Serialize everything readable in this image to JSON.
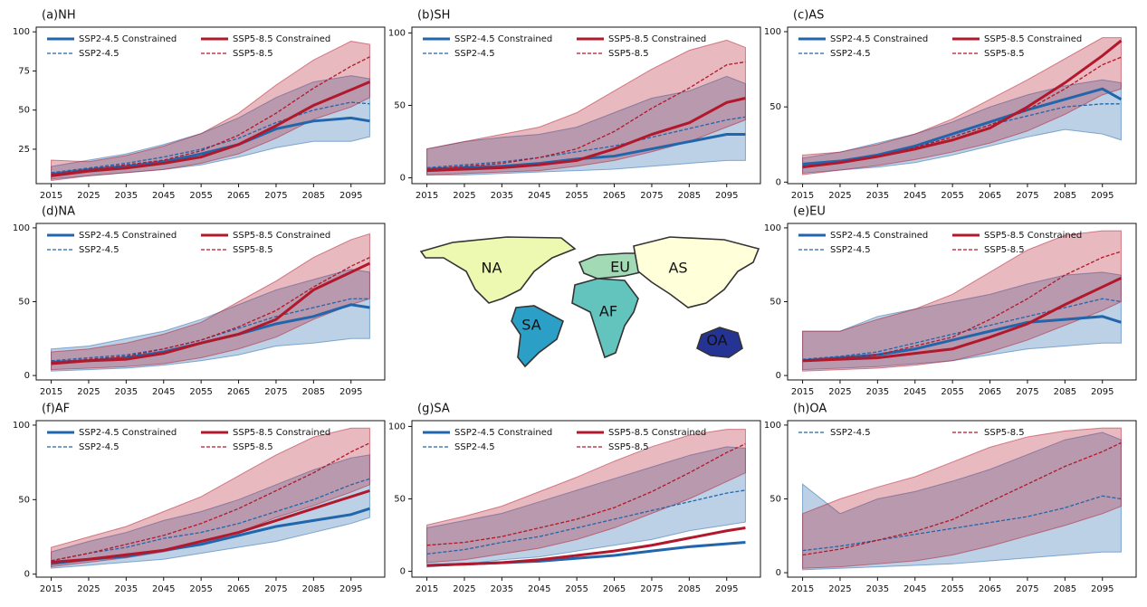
{
  "chart_data": [
    {
      "type": "line",
      "title": "(a)NH",
      "x": [
        2015,
        2025,
        2035,
        2045,
        2055,
        2065,
        2075,
        2085,
        2095,
        2100
      ],
      "xlim": [
        2011,
        2104
      ],
      "xticks": [
        2015,
        2025,
        2035,
        2045,
        2055,
        2065,
        2075,
        2085,
        2095
      ],
      "ylim": [
        3,
        103
      ],
      "yticks": [
        25,
        50,
        75,
        100
      ],
      "series": [
        {
          "name": "SSP2-4.5 Constrained",
          "color": "#2166ac",
          "dashed": false,
          "values": [
            9,
            12,
            14,
            17,
            22,
            28,
            38,
            43,
            45,
            43
          ]
        },
        {
          "name": "SSP2-4.5",
          "color": "#2166ac",
          "dashed": true,
          "values": [
            10,
            13,
            16,
            20,
            25,
            32,
            42,
            50,
            55,
            54
          ],
          "lower": [
            6,
            8,
            10,
            12,
            15,
            20,
            26,
            30,
            30,
            33
          ],
          "upper": [
            14,
            18,
            22,
            28,
            35,
            45,
            58,
            68,
            72,
            70
          ]
        },
        {
          "name": "SSP5-8.5 Constrained",
          "color": "#b2182b",
          "dashed": false,
          "values": [
            8,
            11,
            13,
            16,
            20,
            28,
            40,
            53,
            63,
            68
          ]
        },
        {
          "name": "SSP5-8.5",
          "color": "#b2182b",
          "dashed": true,
          "values": [
            9,
            12,
            15,
            18,
            24,
            34,
            48,
            64,
            78,
            84
          ],
          "lower": [
            5,
            8,
            10,
            12,
            16,
            22,
            32,
            44,
            52,
            58
          ],
          "upper": [
            18,
            17,
            21,
            27,
            35,
            48,
            66,
            82,
            94,
            92
          ]
        }
      ]
    },
    {
      "type": "line",
      "title": "(b)SH",
      "x": [
        2015,
        2025,
        2035,
        2045,
        2055,
        2065,
        2075,
        2085,
        2095,
        2100
      ],
      "xlim": [
        2011,
        2104
      ],
      "xticks": [
        2015,
        2025,
        2035,
        2045,
        2055,
        2065,
        2075,
        2085,
        2095
      ],
      "ylim": [
        -4,
        104
      ],
      "yticks": [
        0,
        50,
        100
      ],
      "series": [
        {
          "name": "SSP2-4.5 Constrained",
          "color": "#2166ac",
          "dashed": false,
          "values": [
            6,
            7,
            8,
            10,
            13,
            15,
            20,
            25,
            30,
            30
          ]
        },
        {
          "name": "SSP2-4.5",
          "color": "#2166ac",
          "dashed": true,
          "values": [
            7,
            9,
            11,
            14,
            18,
            22,
            28,
            34,
            40,
            42
          ],
          "lower": [
            2,
            2,
            3,
            4,
            5,
            6,
            8,
            10,
            12,
            12
          ],
          "upper": [
            20,
            25,
            28,
            30,
            35,
            45,
            55,
            60,
            70,
            65
          ]
        },
        {
          "name": "SSP5-8.5 Constrained",
          "color": "#b2182b",
          "dashed": false,
          "values": [
            5,
            6,
            7,
            9,
            12,
            20,
            30,
            38,
            52,
            55
          ]
        },
        {
          "name": "SSP5-8.5",
          "color": "#b2182b",
          "dashed": true,
          "values": [
            6,
            8,
            10,
            14,
            20,
            32,
            48,
            62,
            78,
            80
          ],
          "lower": [
            2,
            3,
            4,
            5,
            8,
            12,
            18,
            25,
            35,
            40
          ],
          "upper": [
            20,
            25,
            30,
            35,
            45,
            60,
            75,
            88,
            95,
            90
          ]
        }
      ]
    },
    {
      "type": "line",
      "title": "(c)AS",
      "x": [
        2015,
        2025,
        2035,
        2045,
        2055,
        2065,
        2075,
        2085,
        2095,
        2100
      ],
      "xlim": [
        2011,
        2104
      ],
      "xticks": [
        2015,
        2025,
        2035,
        2045,
        2055,
        2065,
        2075,
        2085,
        2095
      ],
      "ylim": [
        -1,
        103
      ],
      "yticks": [
        0,
        50,
        100
      ],
      "series": [
        {
          "name": "SSP2-4.5 Constrained",
          "color": "#2166ac",
          "dashed": false,
          "values": [
            12,
            14,
            18,
            24,
            32,
            40,
            48,
            55,
            62,
            55
          ]
        },
        {
          "name": "SSP2-4.5",
          "color": "#2166ac",
          "dashed": true,
          "values": [
            11,
            14,
            18,
            23,
            30,
            38,
            44,
            50,
            52,
            52
          ],
          "lower": [
            6,
            8,
            10,
            13,
            18,
            24,
            30,
            35,
            32,
            28
          ],
          "upper": [
            16,
            20,
            26,
            32,
            40,
            50,
            58,
            64,
            68,
            66
          ]
        },
        {
          "name": "SSP5-8.5 Constrained",
          "color": "#b2182b",
          "dashed": false,
          "values": [
            10,
            13,
            17,
            22,
            28,
            36,
            50,
            66,
            84,
            94
          ]
        },
        {
          "name": "SSP5-8.5",
          "color": "#b2182b",
          "dashed": true,
          "values": [
            10,
            13,
            17,
            23,
            30,
            38,
            48,
            62,
            78,
            83
          ],
          "lower": [
            5,
            8,
            11,
            15,
            20,
            26,
            34,
            45,
            58,
            62
          ],
          "upper": [
            18,
            20,
            25,
            32,
            42,
            55,
            68,
            82,
            96,
            96
          ]
        }
      ]
    },
    {
      "type": "line",
      "title": "(d)NA",
      "x": [
        2015,
        2025,
        2035,
        2045,
        2055,
        2065,
        2075,
        2085,
        2095,
        2100
      ],
      "xlim": [
        2011,
        2104
      ],
      "xticks": [
        2015,
        2025,
        2035,
        2045,
        2055,
        2065,
        2075,
        2085,
        2095
      ],
      "ylim": [
        -3,
        103
      ],
      "yticks": [
        0,
        50,
        100
      ],
      "series": [
        {
          "name": "SSP2-4.5 Constrained",
          "color": "#2166ac",
          "dashed": false,
          "values": [
            9,
            10,
            12,
            16,
            22,
            28,
            35,
            40,
            48,
            46
          ]
        },
        {
          "name": "SSP2-4.5",
          "color": "#2166ac",
          "dashed": true,
          "values": [
            10,
            12,
            14,
            18,
            24,
            32,
            40,
            46,
            52,
            52
          ],
          "lower": [
            3,
            4,
            5,
            7,
            10,
            14,
            20,
            22,
            25,
            25
          ],
          "upper": [
            18,
            20,
            25,
            30,
            38,
            48,
            58,
            65,
            72,
            70
          ]
        },
        {
          "name": "SSP5-8.5 Constrained",
          "color": "#b2182b",
          "dashed": false,
          "values": [
            8,
            10,
            11,
            15,
            22,
            28,
            38,
            58,
            70,
            76
          ]
        },
        {
          "name": "SSP5-8.5",
          "color": "#b2182b",
          "dashed": true,
          "values": [
            9,
            11,
            13,
            18,
            24,
            33,
            44,
            60,
            74,
            80
          ],
          "lower": [
            4,
            5,
            6,
            8,
            12,
            18,
            26,
            38,
            48,
            52
          ],
          "upper": [
            16,
            18,
            22,
            28,
            36,
            50,
            64,
            80,
            92,
            96
          ]
        }
      ]
    },
    {
      "type": "line",
      "title": "(e)EU",
      "x": [
        2015,
        2025,
        2035,
        2045,
        2055,
        2065,
        2075,
        2085,
        2095,
        2100
      ],
      "xlim": [
        2011,
        2104
      ],
      "xticks": [
        2015,
        2025,
        2035,
        2045,
        2055,
        2065,
        2075,
        2085,
        2095
      ],
      "ylim": [
        -3,
        103
      ],
      "yticks": [
        0,
        50,
        100
      ],
      "series": [
        {
          "name": "SSP2-4.5 Constrained",
          "color": "#2166ac",
          "dashed": false,
          "values": [
            10,
            12,
            14,
            18,
            24,
            30,
            36,
            38,
            40,
            36
          ]
        },
        {
          "name": "SSP2-4.5",
          "color": "#2166ac",
          "dashed": true,
          "values": [
            11,
            13,
            16,
            22,
            28,
            34,
            40,
            46,
            52,
            50
          ],
          "lower": [
            4,
            5,
            6,
            8,
            10,
            14,
            18,
            20,
            22,
            22
          ],
          "upper": [
            30,
            30,
            40,
            45,
            50,
            55,
            62,
            68,
            70,
            68
          ]
        },
        {
          "name": "SSP5-8.5 Constrained",
          "color": "#b2182b",
          "dashed": false,
          "values": [
            10,
            11,
            12,
            15,
            18,
            26,
            35,
            48,
            60,
            66
          ]
        },
        {
          "name": "SSP5-8.5",
          "color": "#b2182b",
          "dashed": true,
          "values": [
            10,
            12,
            14,
            20,
            26,
            38,
            52,
            68,
            80,
            84
          ],
          "lower": [
            3,
            4,
            5,
            7,
            10,
            16,
            24,
            34,
            44,
            50
          ],
          "upper": [
            30,
            30,
            38,
            45,
            55,
            70,
            85,
            95,
            98,
            98
          ]
        }
      ]
    },
    {
      "type": "line",
      "title": "(f)AF",
      "x": [
        2015,
        2025,
        2035,
        2045,
        2055,
        2065,
        2075,
        2085,
        2095,
        2100
      ],
      "xlim": [
        2011,
        2104
      ],
      "xticks": [
        2015,
        2025,
        2035,
        2045,
        2055,
        2065,
        2075,
        2085,
        2095
      ],
      "ylim": [
        -2,
        103
      ],
      "yticks": [
        0,
        50,
        100
      ],
      "series": [
        {
          "name": "SSP2-4.5 Constrained",
          "color": "#2166ac",
          "dashed": false,
          "values": [
            7,
            10,
            12,
            16,
            20,
            26,
            32,
            36,
            40,
            44
          ]
        },
        {
          "name": "SSP2-4.5",
          "color": "#2166ac",
          "dashed": true,
          "values": [
            9,
            14,
            18,
            24,
            28,
            34,
            42,
            50,
            60,
            64
          ],
          "lower": [
            4,
            6,
            8,
            10,
            14,
            18,
            22,
            28,
            34,
            38
          ],
          "upper": [
            15,
            22,
            28,
            36,
            42,
            50,
            60,
            70,
            78,
            80
          ]
        },
        {
          "name": "SSP5-8.5 Constrained",
          "color": "#b2182b",
          "dashed": false,
          "values": [
            8,
            10,
            13,
            16,
            22,
            28,
            36,
            44,
            52,
            56
          ]
        },
        {
          "name": "SSP5-8.5",
          "color": "#b2182b",
          "dashed": true,
          "values": [
            9,
            14,
            20,
            26,
            34,
            44,
            56,
            68,
            82,
            88
          ],
          "lower": [
            5,
            8,
            11,
            15,
            20,
            28,
            38,
            46,
            55,
            60
          ],
          "upper": [
            18,
            25,
            32,
            42,
            52,
            66,
            80,
            92,
            98,
            98
          ]
        }
      ]
    },
    {
      "type": "line",
      "title": "(g)SA",
      "x": [
        2015,
        2025,
        2035,
        2045,
        2055,
        2065,
        2075,
        2085,
        2095,
        2100
      ],
      "xlim": [
        2011,
        2104
      ],
      "xticks": [
        2015,
        2025,
        2035,
        2045,
        2055,
        2065,
        2075,
        2085,
        2095
      ],
      "ylim": [
        -4,
        104
      ],
      "yticks": [
        0,
        50,
        100
      ],
      "series": [
        {
          "name": "SSP2-4.5 Constrained",
          "color": "#2166ac",
          "dashed": false,
          "values": [
            4,
            5,
            6,
            7,
            9,
            11,
            14,
            17,
            19,
            20
          ]
        },
        {
          "name": "SSP2-4.5",
          "color": "#2166ac",
          "dashed": true,
          "values": [
            12,
            15,
            20,
            24,
            30,
            36,
            42,
            48,
            54,
            56
          ],
          "lower": [
            3,
            5,
            8,
            10,
            14,
            18,
            22,
            28,
            32,
            34
          ],
          "upper": [
            30,
            35,
            40,
            48,
            56,
            64,
            72,
            80,
            86,
            85
          ]
        },
        {
          "name": "SSP5-8.5 Constrained",
          "color": "#b2182b",
          "dashed": false,
          "values": [
            4,
            5,
            6,
            8,
            11,
            14,
            18,
            23,
            28,
            30
          ]
        },
        {
          "name": "SSP5-8.5",
          "color": "#b2182b",
          "dashed": true,
          "values": [
            18,
            20,
            24,
            30,
            36,
            44,
            55,
            68,
            82,
            88
          ],
          "lower": [
            6,
            8,
            12,
            16,
            22,
            30,
            40,
            50,
            62,
            68
          ],
          "upper": [
            32,
            38,
            45,
            55,
            65,
            76,
            86,
            94,
            98,
            98
          ]
        }
      ]
    },
    {
      "type": "line",
      "title": "(h)OA",
      "x": [
        2015,
        2025,
        2035,
        2045,
        2055,
        2065,
        2075,
        2085,
        2095,
        2100
      ],
      "xlim": [
        2011,
        2104
      ],
      "xticks": [
        2015,
        2025,
        2035,
        2045,
        2055,
        2065,
        2075,
        2085,
        2095
      ],
      "ylim": [
        -3,
        103
      ],
      "yticks": [
        0,
        50,
        100
      ],
      "series": [
        {
          "name": "SSP2-4.5",
          "color": "#2166ac",
          "dashed": true,
          "values": [
            15,
            18,
            22,
            26,
            30,
            34,
            38,
            44,
            52,
            50
          ],
          "lower": [
            2,
            3,
            4,
            5,
            6,
            8,
            10,
            12,
            14,
            14
          ],
          "upper": [
            60,
            40,
            50,
            55,
            62,
            70,
            80,
            90,
            95,
            90
          ]
        },
        {
          "name": "SSP5-8.5",
          "color": "#b2182b",
          "dashed": true,
          "values": [
            12,
            16,
            22,
            28,
            36,
            48,
            60,
            72,
            82,
            88
          ],
          "lower": [
            3,
            4,
            6,
            8,
            12,
            18,
            25,
            32,
            40,
            45
          ],
          "upper": [
            40,
            50,
            58,
            65,
            75,
            85,
            92,
            96,
            98,
            98
          ]
        }
      ]
    }
  ],
  "map": {
    "regions": [
      "NA",
      "EU",
      "AS",
      "AF",
      "SA",
      "OA"
    ]
  }
}
